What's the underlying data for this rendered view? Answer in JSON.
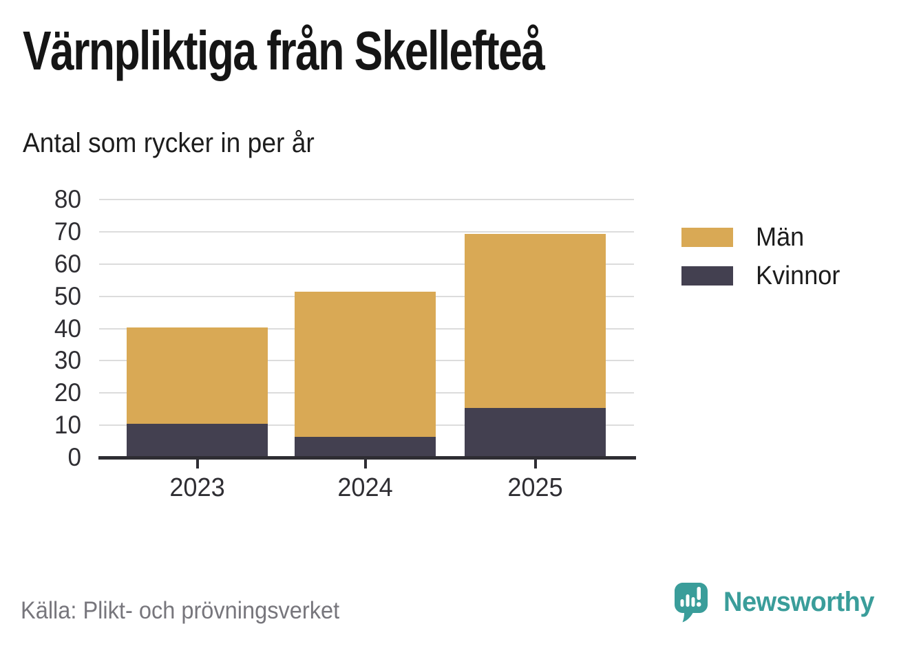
{
  "header": {
    "title": "Värnpliktiga från Skellefteå",
    "subtitle": "Antal som rycker in per år"
  },
  "footer": {
    "source": "Källa: Plikt- och prövningsverket",
    "brand_name": "Newsworthy"
  },
  "colors": {
    "men_bar": "#d9a955",
    "women_bar": "#434050",
    "gridline": "#dcdcdc",
    "axis": "#2e2d33",
    "brand_teal": "#3a9d9a",
    "muted_text": "#77767c"
  },
  "icons": {
    "brand_logo": "speech-bubble-bar-chart-icon"
  },
  "chart_data": {
    "type": "bar",
    "stacked": true,
    "title": "Värnpliktiga från Skellefteå",
    "subtitle": "Antal som rycker in per år",
    "categories": [
      "2023",
      "2024",
      "2025"
    ],
    "series": [
      {
        "name": "Kvinnor",
        "color": "#434050",
        "values": [
          10,
          6,
          15
        ]
      },
      {
        "name": "Män",
        "color": "#d9a955",
        "values": [
          30,
          45,
          54
        ]
      }
    ],
    "totals": [
      40,
      51,
      69
    ],
    "xlabel": "",
    "ylabel": "",
    "ylim": [
      0,
      80
    ],
    "yticks": [
      0,
      10,
      20,
      30,
      40,
      50,
      60,
      70,
      80
    ],
    "grid": true,
    "legend_position": "right",
    "legend_order": [
      "Män",
      "Kvinnor"
    ]
  }
}
